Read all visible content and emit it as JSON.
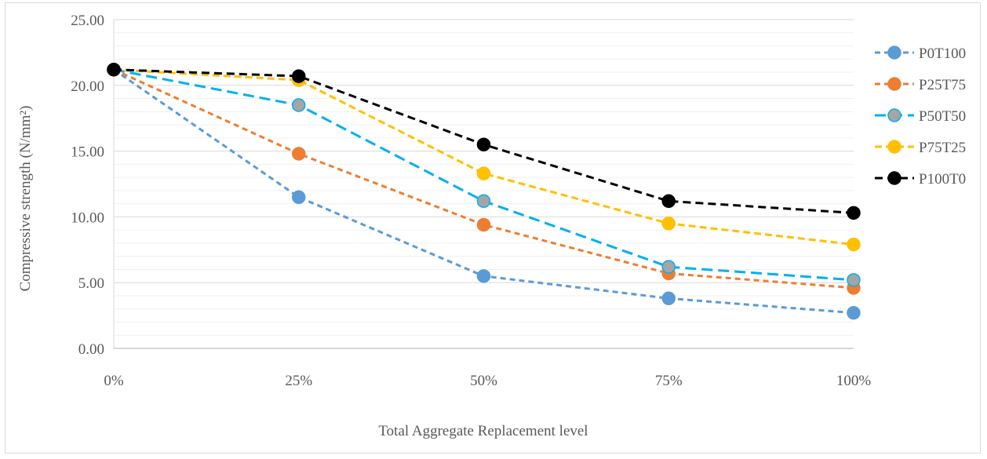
{
  "chart_data": {
    "type": "line",
    "title": "",
    "xlabel": "Total Aggregate Replacement level",
    "ylabel": "Compressive strength (N/mm²)",
    "categories": [
      "0%",
      "25%",
      "50%",
      "75%",
      "100%"
    ],
    "ylim": [
      0,
      25
    ],
    "yticks": [
      "0.00",
      "5.00",
      "10.00",
      "15.00",
      "20.00",
      "25.00"
    ],
    "grid": "horizontal major and minor",
    "legend": "right",
    "series": [
      {
        "name": "P0T100",
        "values": [
          21.2,
          11.5,
          5.5,
          3.8,
          2.7
        ],
        "color": "#5b9bd5",
        "marker_fill": "#5b9bd5",
        "marker_stroke": "#5b9bd5",
        "dash": "7,5"
      },
      {
        "name": "P25T75",
        "values": [
          21.2,
          14.8,
          9.4,
          5.7,
          4.6
        ],
        "color": "#ed7d31",
        "marker_fill": "#ed7d31",
        "marker_stroke": "#ed7d31",
        "dash": "7,5"
      },
      {
        "name": "P50T50",
        "values": [
          21.2,
          18.5,
          11.2,
          6.2,
          5.2
        ],
        "color": "#00b0f0",
        "marker_fill": "#a5a5a5",
        "marker_stroke": "#00b0f0",
        "dash": "14,7"
      },
      {
        "name": "P75T25",
        "values": [
          21.2,
          20.4,
          13.3,
          9.5,
          7.9
        ],
        "color": "#ffc000",
        "marker_fill": "#ffc000",
        "marker_stroke": "#ffc000",
        "dash": "9,5"
      },
      {
        "name": "P100T0",
        "values": [
          21.2,
          20.7,
          15.5,
          11.2,
          10.3
        ],
        "color": "#000000",
        "marker_fill": "#000000",
        "marker_stroke": "#000000",
        "dash": "10,6"
      }
    ]
  }
}
